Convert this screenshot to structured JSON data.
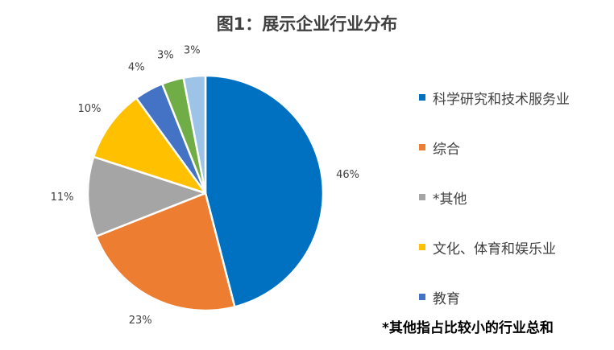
{
  "chart_data": {
    "type": "pie",
    "title": "图1：展示企业行业分布",
    "legend_position": "right",
    "slices": [
      {
        "label": "科学研究和技术服务业",
        "value": 46,
        "value_label": "46%",
        "color": "#0070C0",
        "in_legend": true
      },
      {
        "label": "综合",
        "value": 23,
        "value_label": "23%",
        "color": "#ED7D31",
        "in_legend": true
      },
      {
        "label": "*其他",
        "value": 11,
        "value_label": "11%",
        "color": "#A5A5A5",
        "in_legend": true
      },
      {
        "label": "文化、体育和娱乐业",
        "value": 10,
        "value_label": "10%",
        "color": "#FFC000",
        "in_legend": true
      },
      {
        "label": "教育",
        "value": 4,
        "value_label": "4%",
        "color": "#4472C4",
        "in_legend": true
      },
      {
        "label": "",
        "value": 3,
        "value_label": "3%",
        "color": "#70AD47",
        "in_legend": false
      },
      {
        "label": "",
        "value": 3,
        "value_label": "3%",
        "color": "#9DC3E6",
        "in_legend": false
      }
    ],
    "footnote": "*其他指占比较小的行业总和"
  }
}
